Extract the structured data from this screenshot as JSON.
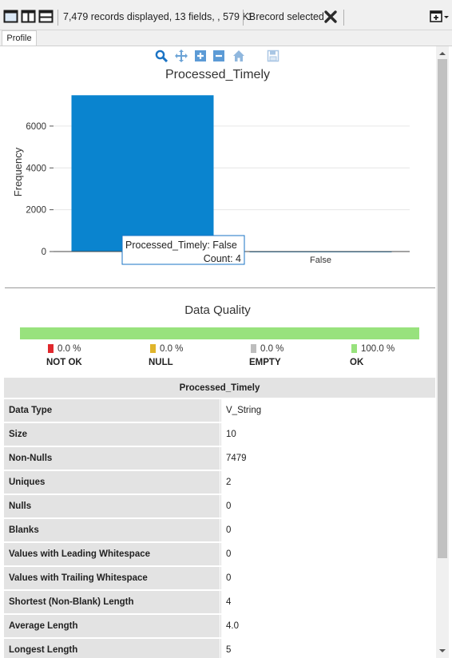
{
  "toolbar": {
    "status": "7,479 records displayed, 13 fields, , 579 KB",
    "selection": "1 record selected"
  },
  "tabs": [
    {
      "label": "Profile"
    }
  ],
  "chart_data": {
    "type": "bar",
    "title": "Processed_Timely",
    "ylabel": "Frequency",
    "xlabel": "",
    "categories": [
      "True",
      "False"
    ],
    "values": [
      7475,
      4
    ],
    "ylim": [
      0,
      7600
    ],
    "yticks": [
      0,
      2000,
      4000,
      6000
    ],
    "grid": true,
    "bar_color": "#0a84cf",
    "tooltip": {
      "line1": "Processed_Timely: False",
      "line2": "Count: 4"
    }
  },
  "data_quality": {
    "title": "Data Quality",
    "ok_fraction": 1.0,
    "items": [
      {
        "pct": "0.0 %",
        "label": "NOT OK",
        "color": "#e0282d"
      },
      {
        "pct": "0.0 %",
        "label": "NULL",
        "color": "#e0b52b"
      },
      {
        "pct": "0.0 %",
        "label": "EMPTY",
        "color": "#bdbdbd"
      },
      {
        "pct": "100.0 %",
        "label": "OK",
        "color": "#98e27d"
      }
    ]
  },
  "stats": {
    "header": "Processed_Timely",
    "rows": [
      {
        "k": "Data Type",
        "v": "V_String"
      },
      {
        "k": "Size",
        "v": "10"
      },
      {
        "k": "Non-Nulls",
        "v": "7479"
      },
      {
        "k": "Uniques",
        "v": "2"
      },
      {
        "k": "Nulls",
        "v": "0"
      },
      {
        "k": "Blanks",
        "v": "0"
      },
      {
        "k": "Values with Leading Whitespace",
        "v": "0"
      },
      {
        "k": "Values with Trailing Whitespace",
        "v": "0"
      },
      {
        "k": "Shortest (Non-Blank) Length",
        "v": "4"
      },
      {
        "k": "Average Length",
        "v": "4.0"
      },
      {
        "k": "Longest Length",
        "v": "5"
      }
    ]
  }
}
